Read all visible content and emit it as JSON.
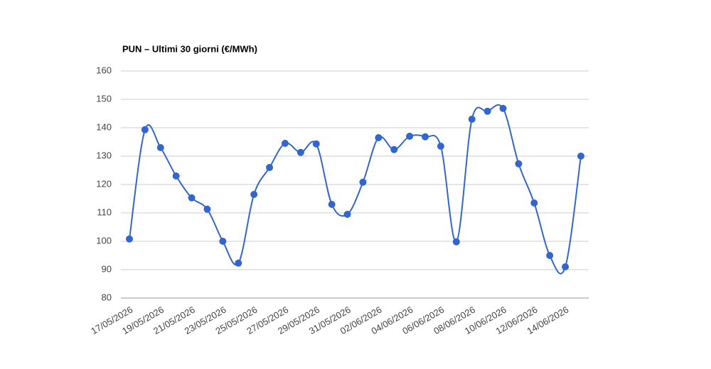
{
  "chart_data": {
    "type": "line",
    "title": "PUN – Ultimi 30 giorni (€/MWh)",
    "categories": [
      "17/05/2026",
      null,
      "19/05/2026",
      null,
      "21/05/2026",
      null,
      "23/05/2026",
      null,
      "25/05/2026",
      null,
      "27/05/2026",
      null,
      "29/05/2026",
      null,
      "31/05/2026",
      null,
      "02/06/2026",
      null,
      "04/06/2026",
      null,
      "06/06/2026",
      null,
      "08/06/2026",
      null,
      "10/06/2026",
      null,
      "12/06/2026",
      null,
      "14/06/2026",
      null
    ],
    "values": [
      100.8,
      139.3,
      133,
      123,
      115.3,
      111.3,
      100,
      92.3,
      116.5,
      126,
      134.5,
      131.3,
      134.3,
      113,
      109.5,
      120.8,
      136.5,
      132.3,
      137,
      136.8,
      133.5,
      99.8,
      143,
      145.8,
      146.8,
      127.3,
      113.5,
      95,
      91,
      130
    ],
    "color": "#3366cc",
    "ylim": [
      80,
      160
    ],
    "yticks": [
      80,
      90,
      100,
      110,
      120,
      130,
      140,
      150,
      160
    ],
    "grid": true
  }
}
